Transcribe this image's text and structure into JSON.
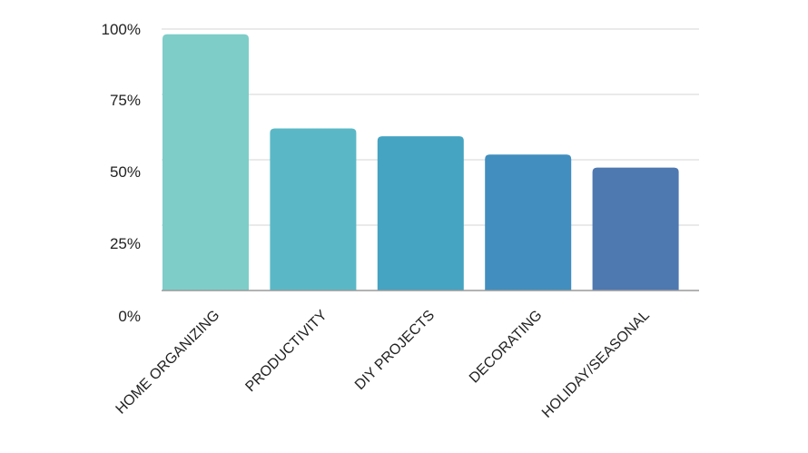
{
  "chart_data": {
    "type": "bar",
    "categories": [
      "HOME ORGANIZING",
      "PRODUCTIVITY",
      "DIY PROJECTS",
      "DECORATING",
      "HOLIDAY/SEASONAL"
    ],
    "values": [
      98,
      62,
      59,
      52,
      47
    ],
    "colors": [
      "#7ecdc8",
      "#5ab8c6",
      "#44a4c2",
      "#418ebf",
      "#4e78b0"
    ],
    "y_ticks": [
      "0%",
      "25%",
      "50%",
      "75%",
      "100%"
    ],
    "ylim": [
      0,
      100
    ],
    "grid": true,
    "title": "",
    "xlabel": "",
    "ylabel": ""
  }
}
